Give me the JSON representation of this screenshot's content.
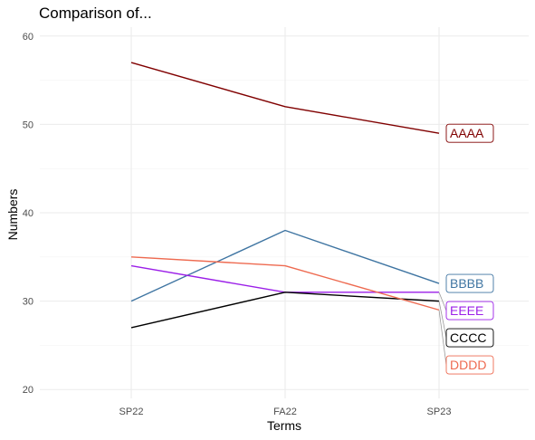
{
  "chart_data": {
    "type": "line",
    "title": "Comparison of...",
    "xlabel": "Terms",
    "ylabel": "Numbers",
    "categories": [
      "SP22",
      "FA22",
      "SP23"
    ],
    "ylim": [
      19,
      61
    ],
    "yticks": [
      20,
      30,
      40,
      50,
      60
    ],
    "grid": true,
    "legend": "direct labels at right end of lines",
    "series": [
      {
        "name": "AAAA",
        "values": [
          57,
          52,
          49
        ],
        "color": "#800000"
      },
      {
        "name": "BBBB",
        "values": [
          30,
          38,
          32
        ],
        "color": "#3f75a2"
      },
      {
        "name": "EEEE",
        "values": [
          34,
          31,
          31
        ],
        "color": "#9b1fe8"
      },
      {
        "name": "CCCC",
        "values": [
          27,
          31,
          30
        ],
        "color": "#000000"
      },
      {
        "name": "DDDD",
        "values": [
          35,
          34,
          29
        ],
        "color": "#ee6a50"
      }
    ]
  }
}
